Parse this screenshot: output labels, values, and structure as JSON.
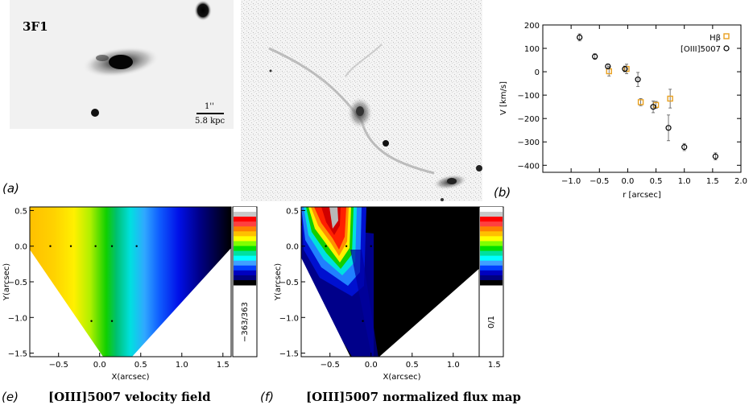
{
  "panel_letters": {
    "a": "(a)",
    "b": "(b)",
    "e": "(e)",
    "f": "(f)"
  },
  "panel_a": {
    "image1_label": "3F1",
    "scale_bar_top": "1''",
    "scale_bar_bottom": "5.8 kpc"
  },
  "caption_e": "[OIII]5007 velocity field",
  "caption_f": "[OIII]5007 normalized flux map",
  "colorbar_e_label": "−363/363",
  "colorbar_f_label": "0/1",
  "colors": {
    "hbeta": "#e8a020",
    "oiii": "#000000"
  },
  "chart_data": [
    {
      "type": "scatter",
      "panel": "b",
      "xlabel": "r [arcsec]",
      "ylabel": "V [km/s]",
      "xlim": [
        -1.5,
        2.0
      ],
      "ylim": [
        -430,
        200
      ],
      "xticks": [
        "−1.0",
        "−0.5",
        "0.0",
        "0.5",
        "1.0",
        "1.5",
        "2.0"
      ],
      "yticks": [
        "200",
        "100",
        "0",
        "−100",
        "−200",
        "−300",
        "−400"
      ],
      "legend_position": "top-right",
      "series": [
        {
          "name": "Hβ",
          "marker": "square",
          "points": [
            {
              "x": -0.33,
              "y": 2,
              "err": 20
            },
            {
              "x": -0.02,
              "y": 12,
              "err": 20
            },
            {
              "x": 0.23,
              "y": -130,
              "err": 15
            },
            {
              "x": 0.5,
              "y": -142,
              "err": 15
            },
            {
              "x": 0.75,
              "y": -115,
              "err": 40
            }
          ]
        },
        {
          "name": "[OIII]5007",
          "marker": "circle",
          "points": [
            {
              "x": -0.85,
              "y": 147,
              "err": 15
            },
            {
              "x": -0.58,
              "y": 65,
              "err": 12
            },
            {
              "x": -0.35,
              "y": 23,
              "err": 10
            },
            {
              "x": -0.05,
              "y": 12,
              "err": 12
            },
            {
              "x": 0.18,
              "y": -33,
              "err": 30
            },
            {
              "x": 0.45,
              "y": -150,
              "err": 25
            },
            {
              "x": 0.72,
              "y": -240,
              "err": 55
            },
            {
              "x": 1.0,
              "y": -322,
              "err": 15
            },
            {
              "x": 1.55,
              "y": -362,
              "err": 15
            }
          ]
        }
      ]
    },
    {
      "type": "heatmap",
      "panel": "e",
      "title": "[OIII]5007 velocity field",
      "xlabel": "X(arcsec)",
      "ylabel": "Y(arcsec)",
      "xlim": [
        -0.85,
        1.6
      ],
      "ylim": [
        -1.55,
        0.55
      ],
      "xticks": [
        "−0.5",
        "0.0",
        "0.5",
        "1.0",
        "1.5"
      ],
      "yticks": [
        "0.5",
        "0.0",
        "−0.5",
        "−1.0",
        "−1.5"
      ],
      "colorbar_range": [
        -363,
        363
      ],
      "sample_points": [
        {
          "x": -0.6,
          "y": 0.0
        },
        {
          "x": -0.35,
          "y": 0.0
        },
        {
          "x": -0.05,
          "y": 0.0
        },
        {
          "x": 0.15,
          "y": 0.0
        },
        {
          "x": 0.45,
          "y": 0.0
        },
        {
          "x": -0.1,
          "y": -1.05
        },
        {
          "x": 0.15,
          "y": -1.05
        }
      ]
    },
    {
      "type": "heatmap",
      "panel": "f",
      "title": "[OIII]5007 normalized flux map",
      "xlabel": "X(arcsec)",
      "ylabel": "Y(arcsec)",
      "xlim": [
        -0.85,
        1.6
      ],
      "ylim": [
        -1.55,
        0.55
      ],
      "xticks": [
        "−0.5",
        "0.0",
        "0.5",
        "1.0",
        "1.5"
      ],
      "yticks": [
        "0.5",
        "0.0",
        "−0.5",
        "−1.0",
        "−1.5"
      ],
      "colorbar_range": [
        0,
        1
      ],
      "sample_points": [
        {
          "x": -0.55,
          "y": 0.0
        },
        {
          "x": -0.3,
          "y": 0.0
        },
        {
          "x": 0.0,
          "y": 0.0
        },
        {
          "x": 0.2,
          "y": 0.0
        },
        {
          "x": -0.1,
          "y": -1.05
        }
      ]
    }
  ]
}
